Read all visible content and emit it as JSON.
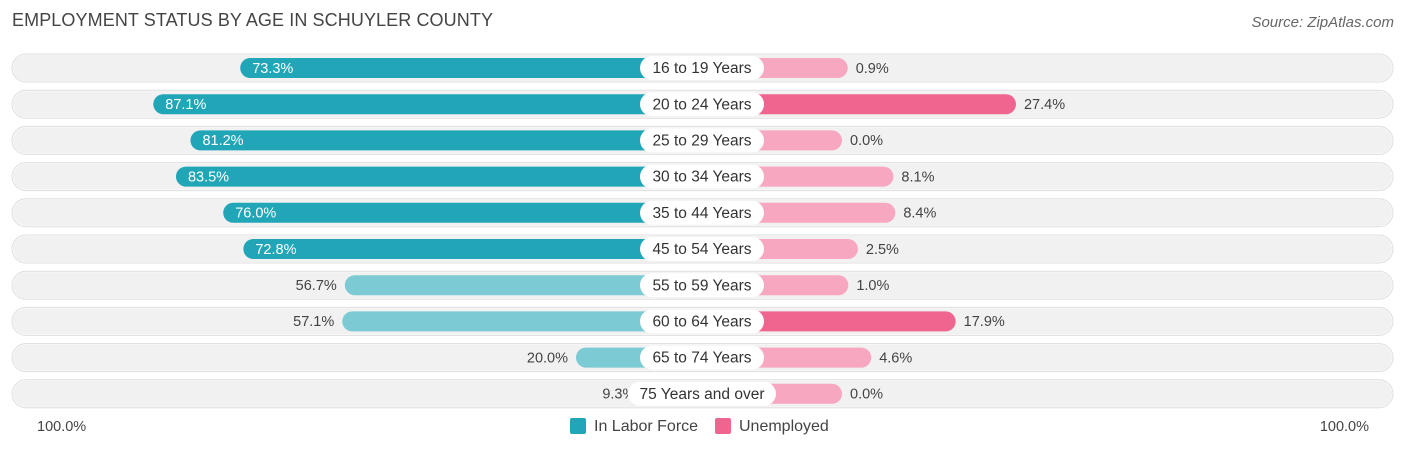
{
  "title": "EMPLOYMENT STATUS BY AGE IN SCHUYLER COUNTY",
  "source": "Source: ZipAtlas.com",
  "colors": {
    "labor_strong": "#21a6b7",
    "labor_light": "#7ccad4",
    "unemp_strong": "#f06590",
    "unemp_light": "#f7a7c0",
    "track": "#f1f1f1"
  },
  "chart_data": {
    "type": "bar",
    "orientation": "horizontal-diverging",
    "title": "EMPLOYMENT STATUS BY AGE IN SCHUYLER COUNTY",
    "categories": [
      "16 to 19 Years",
      "20 to 24 Years",
      "25 to 29 Years",
      "30 to 34 Years",
      "35 to 44 Years",
      "45 to 54 Years",
      "55 to 59 Years",
      "60 to 64 Years",
      "65 to 74 Years",
      "75 Years and over"
    ],
    "series": [
      {
        "name": "In Labor Force",
        "values": [
          73.3,
          87.1,
          81.2,
          83.5,
          76.0,
          72.8,
          56.7,
          57.1,
          20.0,
          9.3
        ],
        "labels": [
          "73.3%",
          "87.1%",
          "81.2%",
          "83.5%",
          "76.0%",
          "72.8%",
          "56.7%",
          "57.1%",
          "20.0%",
          "9.3%"
        ]
      },
      {
        "name": "Unemployed",
        "values": [
          0.9,
          27.4,
          0.0,
          8.1,
          8.4,
          2.5,
          1.0,
          17.9,
          4.6,
          0.0
        ],
        "labels": [
          "0.9%",
          "27.4%",
          "0.0%",
          "8.1%",
          "8.4%",
          "2.5%",
          "1.0%",
          "17.9%",
          "4.6%",
          "0.0%"
        ]
      }
    ],
    "axis_left_label": "100.0%",
    "axis_right_label": "100.0%",
    "xlim": [
      0,
      100
    ],
    "legend_position": "bottom-center"
  }
}
